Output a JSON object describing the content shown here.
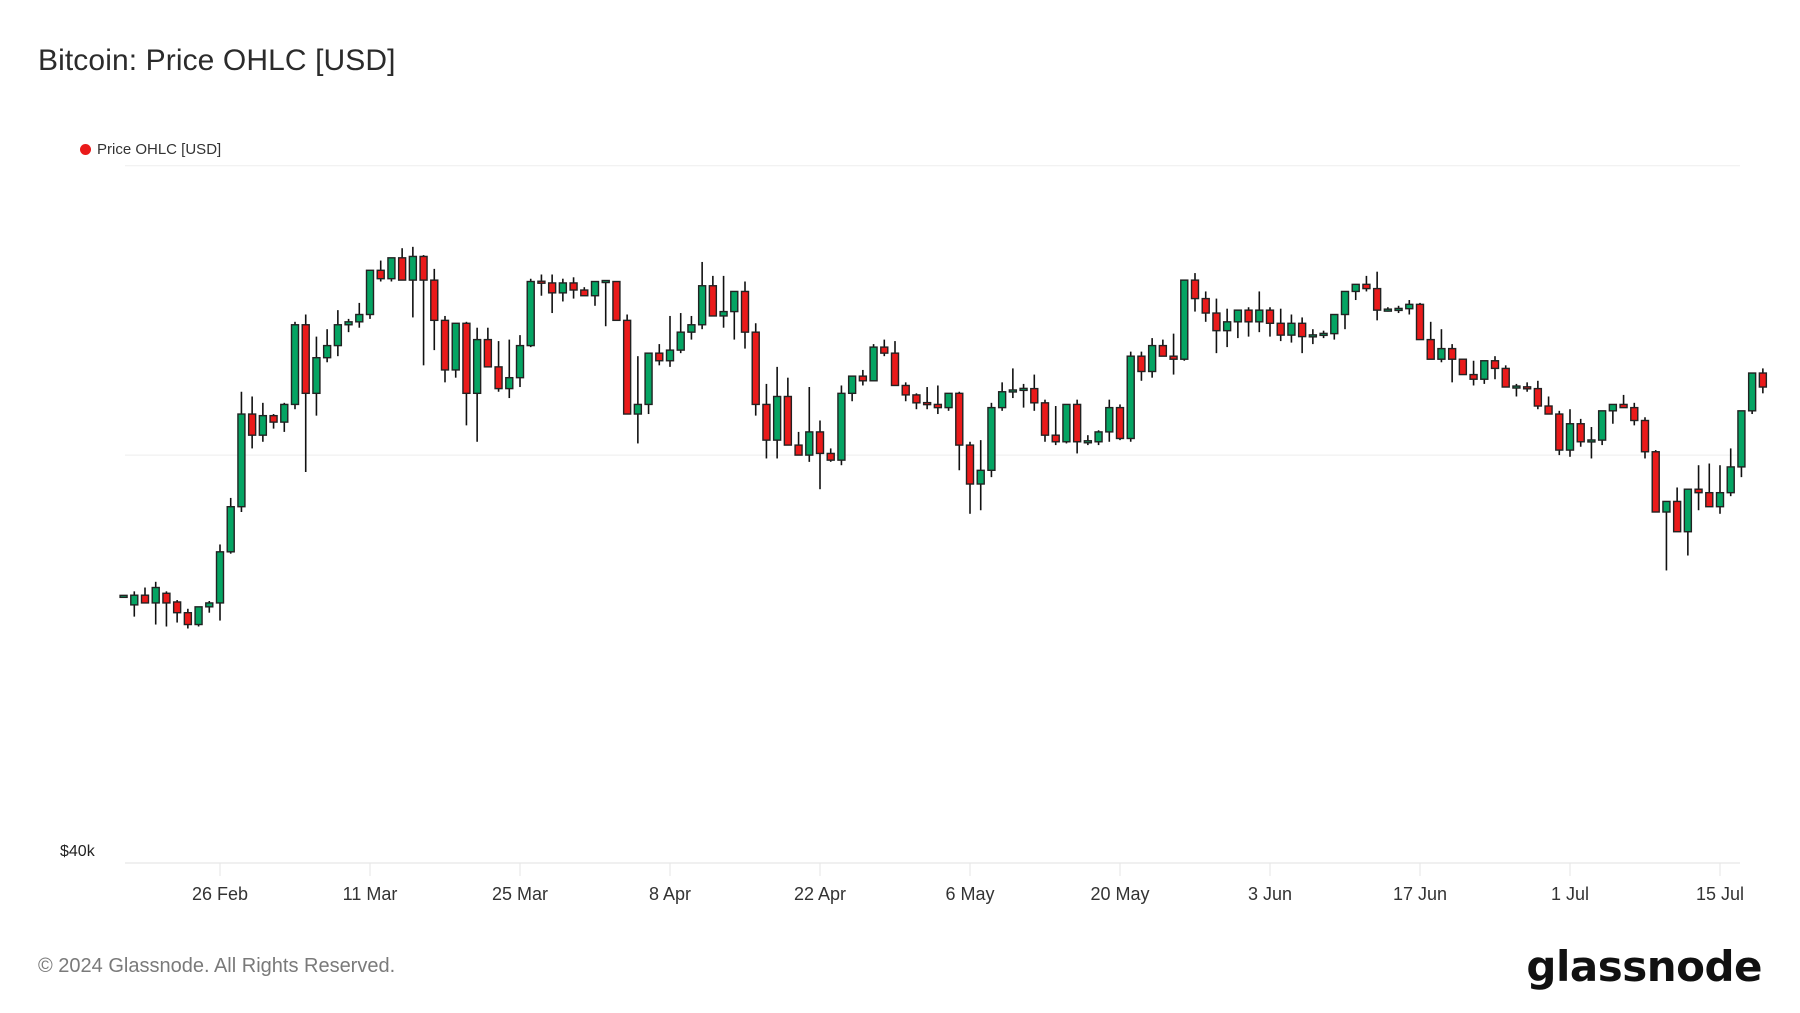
{
  "header": {
    "title": "Bitcoin: Price OHLC [USD]"
  },
  "legend": {
    "label": "Price OHLC [USD]",
    "color": "#ea1a1a"
  },
  "footer": {
    "copyright": "© 2024 Glassnode. All Rights Reserved.",
    "logo": "glassnode"
  },
  "colors": {
    "up": "#05a463",
    "down": "#ea1a1a",
    "outline": "#222222",
    "grid": "#eeeeee"
  },
  "chart_data": {
    "type": "candlestick",
    "title": "Bitcoin: Price OHLC [USD]",
    "xlabel": "",
    "ylabel": "",
    "yscale": "log",
    "y_gridlines": [
      40000,
      60000,
      80000
    ],
    "y_tick_labels": [
      {
        "value": 40000,
        "label": "$40k"
      }
    ],
    "x_tick_labels": [
      {
        "date": "2024-02-26",
        "label": "26 Feb"
      },
      {
        "date": "2024-03-11",
        "label": "11 Mar"
      },
      {
        "date": "2024-03-25",
        "label": "25 Mar"
      },
      {
        "date": "2024-04-08",
        "label": "8 Apr"
      },
      {
        "date": "2024-04-22",
        "label": "22 Apr"
      },
      {
        "date": "2024-05-06",
        "label": "6 May"
      },
      {
        "date": "2024-05-20",
        "label": "20 May"
      },
      {
        "date": "2024-06-03",
        "label": "3 Jun"
      },
      {
        "date": "2024-06-17",
        "label": "17 Jun"
      },
      {
        "date": "2024-07-01",
        "label": "1 Jul"
      },
      {
        "date": "2024-07-15",
        "label": "15 Jul"
      }
    ],
    "legend": [
      "Price OHLC [USD]"
    ],
    "start_date": "2024-02-17",
    "columns": [
      "open",
      "high",
      "low",
      "close"
    ],
    "ohlc": [
      [
        52140,
        52200,
        52100,
        52140
      ],
      [
        51700,
        52400,
        51100,
        52200
      ],
      [
        52200,
        52600,
        51800,
        51800
      ],
      [
        51800,
        52900,
        50700,
        52600
      ],
      [
        52300,
        52400,
        50600,
        51800
      ],
      [
        51850,
        51950,
        50800,
        51300
      ],
      [
        51300,
        51500,
        50500,
        50700
      ],
      [
        50700,
        51300,
        50600,
        51600
      ],
      [
        51600,
        51900,
        51300,
        51800
      ],
      [
        51800,
        54900,
        50900,
        54500
      ],
      [
        54500,
        57500,
        54400,
        57000
      ],
      [
        57000,
        63900,
        56700,
        62500
      ],
      [
        62500,
        63600,
        60400,
        61200
      ],
      [
        61200,
        63200,
        60800,
        62400
      ],
      [
        62400,
        62500,
        61600,
        62000
      ],
      [
        62000,
        63200,
        61400,
        63100
      ],
      [
        63100,
        68500,
        62800,
        68300
      ],
      [
        68300,
        69000,
        59000,
        63800
      ],
      [
        63800,
        67500,
        62400,
        66100
      ],
      [
        66100,
        68000,
        65800,
        66900
      ],
      [
        66900,
        69300,
        66200,
        68300
      ],
      [
        68300,
        68700,
        67800,
        68500
      ],
      [
        68500,
        69800,
        68100,
        69000
      ],
      [
        69000,
        72000,
        68700,
        72100
      ],
      [
        72100,
        72800,
        71300,
        71500
      ],
      [
        71500,
        73000,
        71300,
        73000
      ],
      [
        73000,
        73700,
        72500,
        71400
      ],
      [
        71400,
        73800,
        68800,
        73100
      ],
      [
        73100,
        73200,
        65600,
        71400
      ],
      [
        71400,
        72200,
        66600,
        68600
      ],
      [
        68600,
        68900,
        64500,
        65300
      ],
      [
        65300,
        68000,
        64800,
        68400
      ],
      [
        68400,
        68500,
        61800,
        63800
      ],
      [
        63800,
        68100,
        60800,
        67300
      ],
      [
        67300,
        68100,
        66000,
        65500
      ],
      [
        65500,
        67200,
        63900,
        64100
      ],
      [
        64100,
        67300,
        63500,
        64800
      ],
      [
        64800,
        67600,
        64200,
        66900
      ],
      [
        66900,
        71500,
        66800,
        71300
      ],
      [
        71300,
        71800,
        70300,
        71200
      ],
      [
        71200,
        71800,
        69100,
        70500
      ],
      [
        70500,
        71500,
        69900,
        71200
      ],
      [
        71200,
        71600,
        70100,
        70700
      ],
      [
        70700,
        70900,
        70500,
        70300
      ],
      [
        70300,
        71300,
        69600,
        71300
      ],
      [
        71300,
        71300,
        68200,
        71300
      ],
      [
        71300,
        71300,
        69600,
        68600
      ],
      [
        68600,
        69000,
        64800,
        62500
      ],
      [
        62500,
        66200,
        60700,
        63100
      ],
      [
        63100,
        65300,
        62500,
        66400
      ],
      [
        66400,
        67000,
        65600,
        65900
      ],
      [
        65900,
        68900,
        65500,
        66600
      ],
      [
        66600,
        69100,
        66400,
        67800
      ],
      [
        67800,
        68900,
        67300,
        68300
      ],
      [
        68300,
        72700,
        68000,
        71000
      ],
      [
        71000,
        71700,
        69800,
        68900
      ],
      [
        68900,
        71700,
        68100,
        69200
      ],
      [
        69200,
        70600,
        67300,
        70600
      ],
      [
        70600,
        71300,
        66700,
        67800
      ],
      [
        67800,
        68400,
        62400,
        63100
      ],
      [
        63100,
        64400,
        59800,
        60900
      ],
      [
        60900,
        65500,
        59800,
        63600
      ],
      [
        63600,
        64800,
        60600,
        60600
      ],
      [
        60600,
        61400,
        60100,
        60000
      ],
      [
        60000,
        64200,
        59600,
        61400
      ],
      [
        61400,
        62100,
        58000,
        60100
      ],
      [
        60100,
        60400,
        59600,
        59700
      ],
      [
        59700,
        64300,
        59400,
        63800
      ],
      [
        63800,
        64800,
        63300,
        64900
      ],
      [
        64900,
        65300,
        64300,
        64600
      ],
      [
        64600,
        67000,
        64600,
        66800
      ],
      [
        66800,
        67300,
        66200,
        66400
      ],
      [
        66400,
        67200,
        65700,
        64300
      ],
      [
        64300,
        64500,
        63300,
        63700
      ],
      [
        63700,
        63800,
        62800,
        63200
      ],
      [
        63200,
        64200,
        62800,
        63100
      ],
      [
        63100,
        64300,
        62500,
        62900
      ],
      [
        62900,
        63600,
        62700,
        63800
      ],
      [
        63800,
        63900,
        59100,
        60600
      ],
      [
        60600,
        60800,
        56600,
        58300
      ],
      [
        58300,
        60900,
        56800,
        59100
      ],
      [
        59100,
        63200,
        58700,
        62900
      ],
      [
        62900,
        64500,
        62700,
        63900
      ],
      [
        63900,
        65400,
        63500,
        64000
      ],
      [
        64000,
        64400,
        62900,
        64100
      ],
      [
        64100,
        65000,
        62700,
        63200
      ],
      [
        63200,
        63400,
        60800,
        61200
      ],
      [
        61200,
        63000,
        60600,
        60800
      ],
      [
        60800,
        63000,
        60700,
        63100
      ],
      [
        63100,
        63400,
        60100,
        60800
      ],
      [
        60800,
        61200,
        60600,
        60800
      ],
      [
        60800,
        61500,
        60600,
        61400
      ],
      [
        61400,
        63400,
        60800,
        62900
      ],
      [
        62900,
        63100,
        60900,
        61000
      ],
      [
        61000,
        66500,
        60800,
        66200
      ],
      [
        66200,
        66500,
        64600,
        65200
      ],
      [
        65200,
        67400,
        64800,
        66900
      ],
      [
        66900,
        67300,
        66300,
        66200
      ],
      [
        66200,
        67700,
        65000,
        66000
      ],
      [
        66000,
        71400,
        65900,
        71400
      ],
      [
        71400,
        71900,
        69200,
        70100
      ],
      [
        70100,
        70600,
        68500,
        69100
      ],
      [
        69100,
        70100,
        66400,
        67900
      ],
      [
        67900,
        69400,
        66800,
        68500
      ],
      [
        68500,
        69000,
        67400,
        69300
      ],
      [
        69300,
        69500,
        67500,
        68500
      ],
      [
        68500,
        70600,
        67800,
        69300
      ],
      [
        69300,
        69500,
        67500,
        68400
      ],
      [
        68400,
        69400,
        67200,
        67600
      ],
      [
        67600,
        69000,
        67100,
        68400
      ],
      [
        68400,
        68800,
        66400,
        67500
      ],
      [
        67500,
        68000,
        67000,
        67600
      ],
      [
        67600,
        67900,
        67400,
        67700
      ],
      [
        67700,
        69000,
        67300,
        69000
      ],
      [
        69000,
        70300,
        68000,
        70600
      ],
      [
        70600,
        71100,
        70000,
        71100
      ],
      [
        71100,
        71700,
        70600,
        70800
      ],
      [
        70800,
        72000,
        68600,
        69300
      ],
      [
        69300,
        69500,
        69200,
        69300
      ],
      [
        69300,
        69600,
        69100,
        69400
      ],
      [
        69400,
        70000,
        69000,
        69700
      ],
      [
        69700,
        69800,
        67400,
        67300
      ],
      [
        67300,
        68500,
        66300,
        66000
      ],
      [
        66000,
        68000,
        65800,
        66700
      ],
      [
        66700,
        67000,
        64500,
        66000
      ],
      [
        66000,
        66000,
        65100,
        65000
      ],
      [
        65000,
        65900,
        64300,
        64700
      ],
      [
        64700,
        65600,
        64400,
        65900
      ],
      [
        65900,
        66200,
        64700,
        65400
      ],
      [
        65400,
        65600,
        64500,
        64200
      ],
      [
        64200,
        64400,
        63600,
        64200
      ],
      [
        64200,
        64500,
        63900,
        64100
      ],
      [
        64100,
        64600,
        62800,
        63000
      ],
      [
        63000,
        63600,
        62800,
        62500
      ],
      [
        62500,
        62700,
        60000,
        60300
      ],
      [
        60300,
        62800,
        59900,
        61900
      ],
      [
        61900,
        62200,
        60500,
        60800
      ],
      [
        60800,
        61700,
        59800,
        60900
      ],
      [
        60900,
        62000,
        60600,
        62700
      ],
      [
        62700,
        63000,
        61900,
        63100
      ],
      [
        63100,
        63700,
        62900,
        62900
      ],
      [
        62900,
        63200,
        61800,
        62100
      ],
      [
        62100,
        62300,
        59800,
        60200
      ],
      [
        60200,
        60300,
        56700,
        56700
      ],
      [
        56700,
        57000,
        53500,
        57300
      ],
      [
        57300,
        58100,
        55600,
        55600
      ],
      [
        55600,
        58000,
        54300,
        58000
      ],
      [
        58000,
        59400,
        56800,
        57800
      ],
      [
        57800,
        59500,
        57200,
        57000
      ],
      [
        57000,
        59400,
        56600,
        57800
      ],
      [
        57800,
        60400,
        57600,
        59300
      ],
      [
        59300,
        61800,
        58700,
        62700
      ],
      [
        62700,
        65000,
        62500,
        65100
      ],
      [
        65100,
        65400,
        63800,
        64200
      ]
    ]
  }
}
